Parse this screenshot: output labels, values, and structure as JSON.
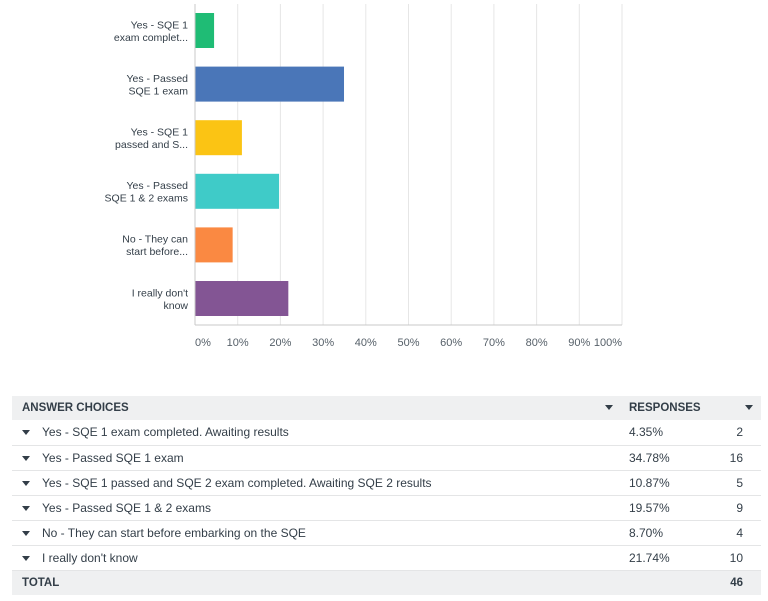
{
  "chart_data": {
    "type": "bar",
    "orientation": "horizontal",
    "categories": [
      [
        "Yes - SQE 1",
        "exam complet..."
      ],
      [
        "Yes - Passed",
        "SQE 1 exam"
      ],
      [
        "Yes - SQE 1",
        "passed and S..."
      ],
      [
        "Yes - Passed",
        "SQE 1 & 2 exams"
      ],
      [
        "No - They can",
        "start before..."
      ],
      [
        "I really don't",
        "know"
      ]
    ],
    "values": [
      4.35,
      34.78,
      10.87,
      19.57,
      8.7,
      21.74
    ],
    "colors": [
      "#1fbc75",
      "#4a76b8",
      "#fbc414",
      "#3fcbc8",
      "#fa8942",
      "#835594"
    ],
    "xlim": [
      0,
      100
    ],
    "x_ticks": [
      "0%",
      "10%",
      "20%",
      "30%",
      "40%",
      "50%",
      "60%",
      "70%",
      "80%",
      "90%",
      "100%"
    ],
    "grid": true
  },
  "table": {
    "header": {
      "choices": "ANSWER CHOICES",
      "responses": "RESPONSES"
    },
    "rows": [
      {
        "choice": "Yes - SQE 1 exam completed. Awaiting results",
        "percent": "4.35%",
        "count": "2"
      },
      {
        "choice": "Yes - Passed SQE 1 exam",
        "percent": "34.78%",
        "count": "16"
      },
      {
        "choice": "Yes - SQE 1 passed and SQE 2 exam completed. Awaiting SQE 2 results",
        "percent": "10.87%",
        "count": "5"
      },
      {
        "choice": "Yes - Passed SQE 1 & 2 exams",
        "percent": "19.57%",
        "count": "9"
      },
      {
        "choice": "No - They can start before embarking on the SQE",
        "percent": "8.70%",
        "count": "4"
      },
      {
        "choice": "I really don't know",
        "percent": "21.74%",
        "count": "10"
      }
    ],
    "footer": {
      "label": "TOTAL",
      "total": "46"
    }
  }
}
